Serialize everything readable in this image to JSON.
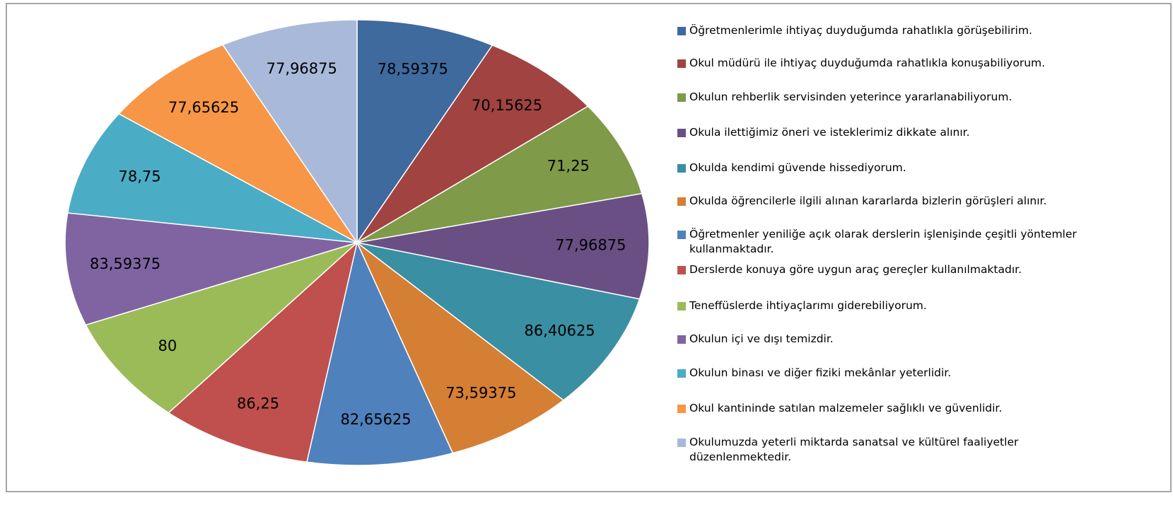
{
  "chart_data": {
    "type": "pie",
    "categories": [
      "Öğretmenlerimle ihtiyaç duyduğumda rahatlıkla görüşebilirim.",
      "Okul müdürü ile ihtiyaç duyduğumda rahatlıkla konuşabiliyorum.",
      "Okulun rehberlik servisinden yeterince yararlanabiliyorum.",
      "Okula ilettiğimiz öneri ve isteklerimiz dikkate alınır.",
      "Okulda kendimi güvende hissediyorum.",
      "Okulda öğrencilerle ilgili alınan kararlarda bizlerin görüşleri alınır.",
      "Öğretmenler yeniliğe açık olarak derslerin işlenişinde çeşitli yöntemler kullanmaktadır.",
      "Derslerde konuya göre uygun araç gereçler kullanılmaktadır.",
      "Teneffüslerde ihtiyaçlarımı giderebiliyorum.",
      "Okulun içi ve dışı temizdir.",
      "Okulun binası ve diğer fiziki mekânlar yeterlidir.",
      "Okul kantininde satılan malzemeler sağlıklı ve güvenlidir.",
      "Okulumuzda yeterli miktarda sanatsal ve kültürel faaliyetler düzenlenmektedir."
    ],
    "values": [
      78.59375,
      70.15625,
      71.25,
      77.96875,
      86.40625,
      73.59375,
      82.65625,
      86.25,
      80,
      83.59375,
      78.75,
      77.65625,
      77.96875
    ],
    "value_labels": [
      "78,59375",
      "70,15625",
      "71,25",
      "77,96875",
      "86,40625",
      "73,59375",
      "82,65625",
      "86,25",
      "80",
      "83,59375",
      "78,75",
      "77,65625",
      "77,96875"
    ],
    "colors": [
      "#3E6A9E",
      "#A04341",
      "#7F9A48",
      "#6A4F85",
      "#3A8FA3",
      "#D57F35",
      "#4F81BD",
      "#C0504D",
      "#9BBB59",
      "#8064A2",
      "#4BACC6",
      "#F79646",
      "#A9B9DA"
    ]
  }
}
